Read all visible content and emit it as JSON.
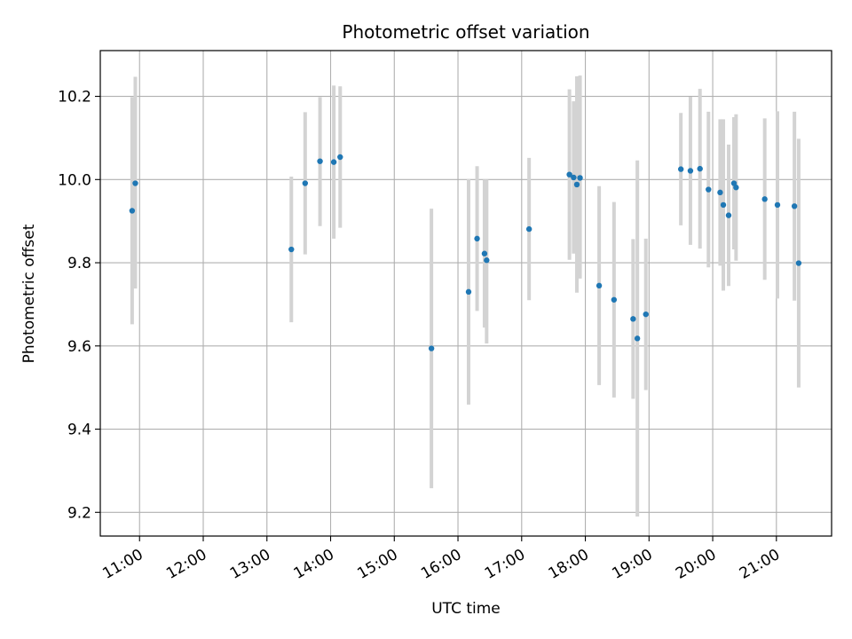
{
  "chart_data": {
    "type": "scatter",
    "title": "Photometric offset variation",
    "xlabel": "UTC time",
    "ylabel": "Photometric offset",
    "x_unit": "hours UTC",
    "xlim": [
      "10:23",
      "21:52"
    ],
    "ylim": [
      9.143,
      10.31
    ],
    "x_ticks": [
      "11:00",
      "12:00",
      "13:00",
      "14:00",
      "15:00",
      "16:00",
      "17:00",
      "18:00",
      "19:00",
      "20:00",
      "21:00"
    ],
    "y_ticks": [
      "9.2",
      "9.4",
      "9.6",
      "9.8",
      "10.0",
      "10.2"
    ],
    "grid": true,
    "legend": "none",
    "colors": {
      "marker": "#1f77b4",
      "errorbar": "#d3d3d3",
      "grid": "#b0b0b0",
      "axes": "#000000"
    },
    "points": [
      {
        "t": "10:53",
        "y": 9.925,
        "lo": 9.652,
        "hi": 10.198
      },
      {
        "t": "10:56",
        "y": 9.991,
        "lo": 9.738,
        "hi": 10.247
      },
      {
        "t": "13:23",
        "y": 9.832,
        "lo": 9.657,
        "hi": 10.007
      },
      {
        "t": "13:36",
        "y": 9.991,
        "lo": 9.82,
        "hi": 10.162
      },
      {
        "t": "13:50",
        "y": 10.044,
        "lo": 9.888,
        "hi": 10.198
      },
      {
        "t": "14:03",
        "y": 10.042,
        "lo": 9.858,
        "hi": 10.226
      },
      {
        "t": "14:09",
        "y": 10.054,
        "lo": 9.884,
        "hi": 10.224
      },
      {
        "t": "15:35",
        "y": 9.594,
        "lo": 9.258,
        "hi": 9.93
      },
      {
        "t": "16:10",
        "y": 9.73,
        "lo": 9.459,
        "hi": 10.001
      },
      {
        "t": "16:18",
        "y": 9.858,
        "lo": 9.684,
        "hi": 10.032
      },
      {
        "t": "16:25",
        "y": 9.822,
        "lo": 9.644,
        "hi": 10.0
      },
      {
        "t": "16:27",
        "y": 9.806,
        "lo": 9.606,
        "hi": 10.0
      },
      {
        "t": "17:07",
        "y": 9.881,
        "lo": 9.71,
        "hi": 10.052
      },
      {
        "t": "17:45",
        "y": 10.012,
        "lo": 9.807,
        "hi": 10.217
      },
      {
        "t": "17:49",
        "y": 10.005,
        "lo": 9.822,
        "hi": 10.188
      },
      {
        "t": "17:52",
        "y": 9.988,
        "lo": 9.728,
        "hi": 10.248
      },
      {
        "t": "17:55",
        "y": 10.004,
        "lo": 9.762,
        "hi": 10.25
      },
      {
        "t": "18:13",
        "y": 9.745,
        "lo": 9.506,
        "hi": 9.984
      },
      {
        "t": "18:27",
        "y": 9.711,
        "lo": 9.476,
        "hi": 9.946
      },
      {
        "t": "18:45",
        "y": 9.665,
        "lo": 9.473,
        "hi": 9.857
      },
      {
        "t": "18:49",
        "y": 9.618,
        "lo": 9.19,
        "hi": 10.046
      },
      {
        "t": "18:57",
        "y": 9.676,
        "lo": 9.494,
        "hi": 9.858
      },
      {
        "t": "19:30",
        "y": 10.025,
        "lo": 9.89,
        "hi": 10.16
      },
      {
        "t": "19:39",
        "y": 10.021,
        "lo": 9.843,
        "hi": 10.199
      },
      {
        "t": "19:48",
        "y": 10.026,
        "lo": 9.834,
        "hi": 10.218
      },
      {
        "t": "19:56",
        "y": 9.976,
        "lo": 9.789,
        "hi": 10.163
      },
      {
        "t": "20:07",
        "y": 9.969,
        "lo": 9.793,
        "hi": 10.145
      },
      {
        "t": "20:10",
        "y": 9.939,
        "lo": 9.733,
        "hi": 10.145
      },
      {
        "t": "20:15",
        "y": 9.914,
        "lo": 9.744,
        "hi": 10.084
      },
      {
        "t": "20:20",
        "y": 9.991,
        "lo": 9.832,
        "hi": 10.15
      },
      {
        "t": "20:22",
        "y": 9.981,
        "lo": 9.805,
        "hi": 10.157
      },
      {
        "t": "20:49",
        "y": 9.953,
        "lo": 9.759,
        "hi": 10.147
      },
      {
        "t": "21:01",
        "y": 9.939,
        "lo": 9.714,
        "hi": 10.164
      },
      {
        "t": "21:17",
        "y": 9.936,
        "lo": 9.709,
        "hi": 10.163
      },
      {
        "t": "21:21",
        "y": 9.799,
        "lo": 9.5,
        "hi": 10.098
      }
    ]
  }
}
